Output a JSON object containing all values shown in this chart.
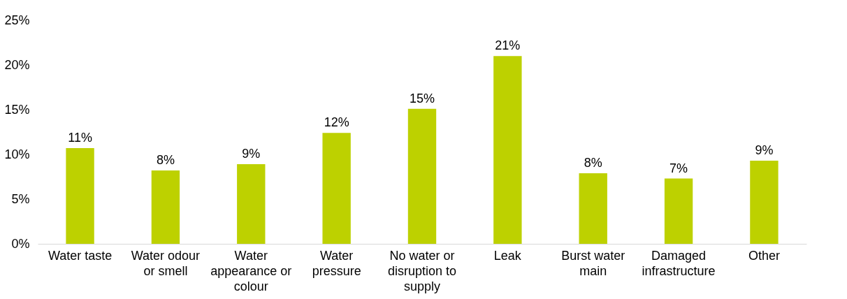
{
  "chart_data": {
    "type": "bar",
    "categories": [
      "Water taste",
      "Water odour or smell",
      "Water appearance or colour",
      "Water pressure",
      "No water or disruption to supply",
      "Leak",
      "Burst water main",
      "Damaged infrastructure",
      "Other"
    ],
    "values": [
      10.7,
      8.2,
      8.9,
      12.4,
      15.1,
      21.0,
      7.9,
      7.3,
      9.3
    ],
    "value_labels": [
      "11%",
      "8%",
      "9%",
      "12%",
      "15%",
      "21%",
      "8%",
      "7%",
      "9%"
    ],
    "color": "#bdd100",
    "ylim": [
      0,
      25
    ],
    "yticks": [
      {
        "value": 0,
        "label": "0%"
      },
      {
        "value": 5,
        "label": "5%"
      },
      {
        "value": 10,
        "label": "10%"
      },
      {
        "value": 15,
        "label": "15%"
      },
      {
        "value": 20,
        "label": "20%"
      },
      {
        "value": 25,
        "label": "25%"
      }
    ],
    "grid": false
  }
}
